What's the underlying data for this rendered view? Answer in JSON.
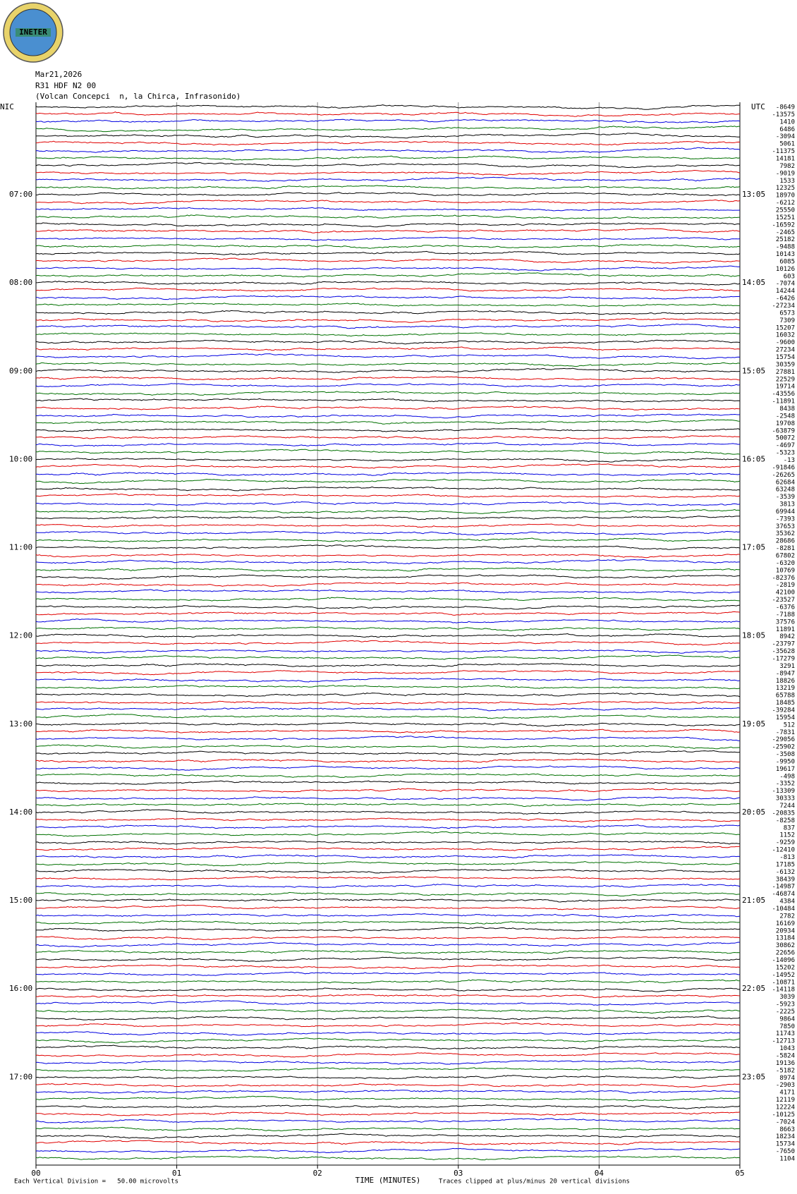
{
  "header": {
    "logo": "INETER",
    "date": "Mar21,2026",
    "station": "R31 HDF N2 00",
    "location": "(Volcan Concepci  n, la Chirca, Infrasonido)"
  },
  "plot": {
    "left_zone": "NIC",
    "right_zone": "UTC",
    "left_hours": [
      "07:00",
      "08:00",
      "09:00",
      "10:00",
      "11:00",
      "12:00",
      "13:00",
      "14:00",
      "15:00",
      "16:00",
      "17:00"
    ],
    "right_hours": [
      "13:05",
      "14:05",
      "15:05",
      "16:05",
      "17:05",
      "18:05",
      "19:05",
      "20:05",
      "21:05",
      "22:05",
      "23:05"
    ],
    "trace_offsets": [
      -8649,
      -13575,
      1410,
      6486,
      -3094,
      5061,
      -11375,
      14181,
      7982,
      -9019,
      1533,
      12325,
      18970,
      -6212,
      25550,
      15251,
      -16592,
      -2465,
      25182,
      -9488,
      10143,
      6085,
      10126,
      603,
      -7074,
      14244,
      -6426,
      -27234,
      6573,
      7309,
      15207,
      16032,
      -9600,
      27234,
      15754,
      30359,
      27881,
      22529,
      19714,
      -43556,
      -11891,
      8438,
      -2548,
      19708,
      -63879,
      50072,
      -4697,
      -5323,
      -13,
      -91846,
      -26265,
      62684,
      63248,
      -3539,
      3813,
      69944,
      -7393,
      37653,
      35362,
      28686,
      -8281,
      67802,
      -6320,
      10769,
      -82376,
      -2819,
      42100,
      -23527,
      -6376,
      -7188,
      37576,
      11891,
      8942,
      -23797,
      -35628,
      -17279,
      3291,
      -8947,
      18826,
      13219,
      65788,
      18485,
      -39284,
      15954,
      512,
      -7831,
      -29056,
      -25902,
      -3508,
      -9950,
      19617,
      -498,
      -3352,
      -13309,
      30333,
      7244,
      -20835,
      -8258,
      837,
      1152,
      -9259,
      -12410,
      -813,
      17185,
      -6132,
      38439,
      -14987,
      -46874,
      4384,
      -10484,
      2782,
      16169,
      20934,
      13184,
      30862,
      22656,
      -14096,
      15202,
      -14952,
      -10871,
      -14118,
      3039,
      -5923,
      -2225,
      9864,
      7850,
      11743,
      -12713,
      1043,
      -5824,
      19136,
      -5182,
      8974,
      -2903,
      4171,
      12119,
      12224,
      -10125,
      -7024,
      8663,
      18234,
      15734,
      -7650,
      1104
    ],
    "x_ticks": [
      "00",
      "01",
      "02",
      "03",
      "04",
      "05"
    ],
    "x_label": "TIME (MINUTES)"
  },
  "footer": {
    "scale_note": "Each Vertical Division =   50.00 microvolts",
    "clip_note": "Traces clipped at plus/minus 20 vertical divisions"
  }
}
